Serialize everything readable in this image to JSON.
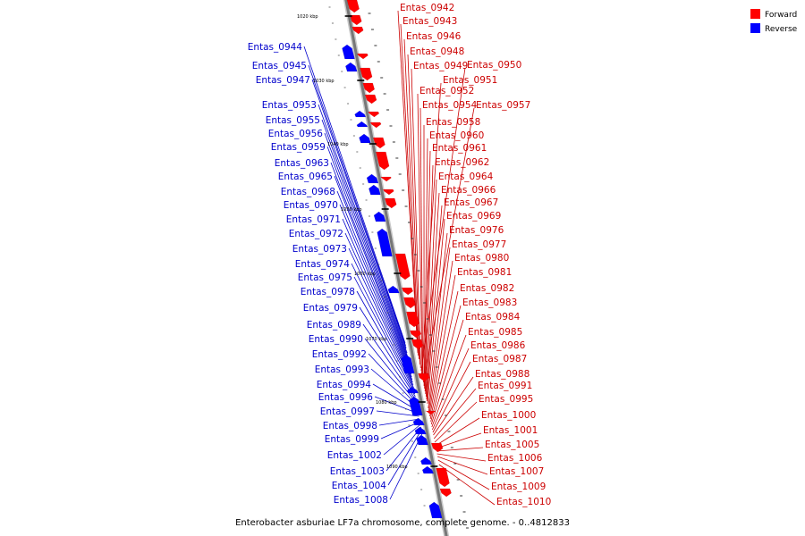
{
  "caption": "Enterobacter asburiae LF7a chromosome, complete genome. - 0..4812833",
  "legend": [
    {
      "label": "Forward",
      "color": "#ff0000"
    },
    {
      "label": "Reverse",
      "color": "#0000ff"
    }
  ],
  "kbp_ticks": [
    "1020 kbp",
    "1030 kbp",
    "1040 kbp",
    "1050 kbp",
    "1060 kbp",
    "1070 kbp",
    "1080 kbp",
    "1090 kbp"
  ],
  "forward_genes": [
    "Entas_0942",
    "Entas_0943",
    "Entas_0946",
    "Entas_0948",
    "Entas_0949",
    "Entas_0950",
    "Entas_0951",
    "Entas_0952",
    "Entas_0954",
    "Entas_0957",
    "Entas_0958",
    "Entas_0960",
    "Entas_0961",
    "Entas_0962",
    "Entas_0964",
    "Entas_0966",
    "Entas_0967",
    "Entas_0969",
    "Entas_0976",
    "Entas_0977",
    "Entas_0980",
    "Entas_0981",
    "Entas_0982",
    "Entas_0983",
    "Entas_0984",
    "Entas_0985",
    "Entas_0986",
    "Entas_0987",
    "Entas_0988",
    "Entas_0991",
    "Entas_0995",
    "Entas_1000",
    "Entas_1001",
    "Entas_1005",
    "Entas_1006",
    "Entas_1007",
    "Entas_1009",
    "Entas_1010"
  ],
  "reverse_genes": [
    "Entas_0944",
    "Entas_0945",
    "Entas_0947",
    "Entas_0953",
    "Entas_0955",
    "Entas_0956",
    "Entas_0959",
    "Entas_0963",
    "Entas_0965",
    "Entas_0968",
    "Entas_0970",
    "Entas_0971",
    "Entas_0972",
    "Entas_0973",
    "Entas_0974",
    "Entas_0975",
    "Entas_0978",
    "Entas_0979",
    "Entas_0989",
    "Entas_0990",
    "Entas_0992",
    "Entas_0993",
    "Entas_0994",
    "Entas_0996",
    "Entas_0997",
    "Entas_0998",
    "Entas_0999",
    "Entas_1002",
    "Entas_1003",
    "Entas_1004",
    "Entas_1008"
  ]
}
